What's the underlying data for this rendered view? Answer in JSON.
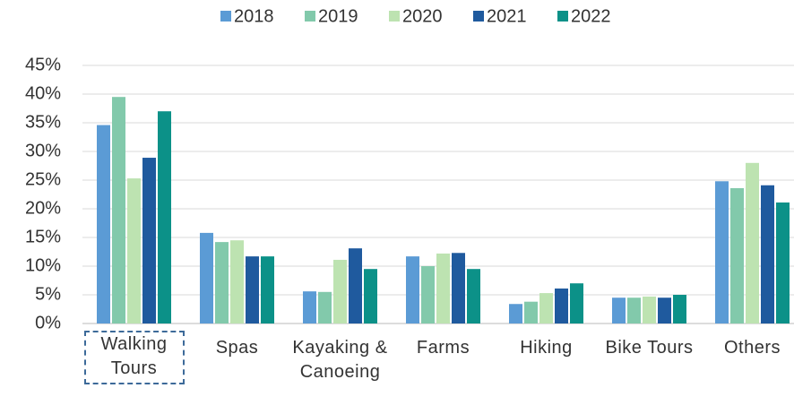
{
  "chart_data": {
    "type": "bar",
    "categories": [
      "Walking Tours",
      "Spas",
      "Kayaking & Canoeing",
      "Farms",
      "Hiking",
      "Bike Tours",
      "Others"
    ],
    "series": [
      {
        "name": "2018",
        "color": "#5b9bd5",
        "values": [
          34.6,
          15.8,
          5.6,
          11.7,
          3.4,
          4.5,
          24.8
        ]
      },
      {
        "name": "2019",
        "color": "#82c9ab",
        "values": [
          39.5,
          14.2,
          5.5,
          10.0,
          3.8,
          4.5,
          23.6
        ]
      },
      {
        "name": "2020",
        "color": "#bde3b1",
        "values": [
          25.3,
          14.5,
          11.1,
          12.2,
          5.3,
          4.7,
          28.0
        ]
      },
      {
        "name": "2021",
        "color": "#1f5a9e",
        "values": [
          28.9,
          11.7,
          13.1,
          12.3,
          6.1,
          4.5,
          24.1
        ]
      },
      {
        "name": "2022",
        "color": "#0c9188",
        "values": [
          37.0,
          11.7,
          9.5,
          9.5,
          7.0,
          5.0,
          21.1
        ]
      }
    ],
    "ylim": [
      0,
      45
    ],
    "yticks": [
      {
        "value": 0,
        "label": "0%"
      },
      {
        "value": 5,
        "label": "5%"
      },
      {
        "value": 10,
        "label": "10%"
      },
      {
        "value": 15,
        "label": "15%"
      },
      {
        "value": 20,
        "label": "20%"
      },
      {
        "value": 25,
        "label": "25%"
      },
      {
        "value": 30,
        "label": "30%"
      },
      {
        "value": 35,
        "label": "35%"
      },
      {
        "value": 40,
        "label": "40%"
      },
      {
        "value": 45,
        "label": "45%"
      }
    ],
    "grid": true,
    "legend": "top"
  }
}
